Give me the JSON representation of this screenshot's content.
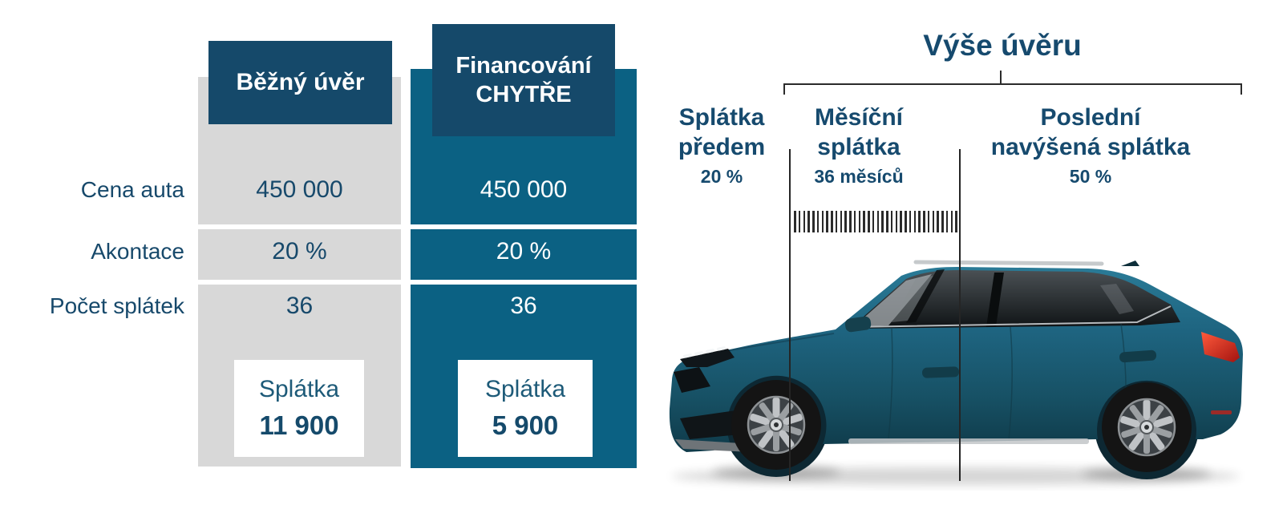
{
  "table": {
    "row_labels": [
      "Cena auta",
      "Akontace",
      "Počet splátek"
    ],
    "columns": [
      {
        "id": "standard-loan",
        "header_lines": [
          "Běžný úvěr"
        ],
        "values": [
          "450 000",
          "20 %",
          "36"
        ],
        "payment_label": "Splátka",
        "payment_value": "11 900"
      },
      {
        "id": "smart-financing",
        "header_lines": [
          "Financování",
          "CHYTŘE"
        ],
        "values": [
          "450 000",
          "20 %",
          "36"
        ],
        "payment_label": "Splátka",
        "payment_value": "5 900"
      }
    ]
  },
  "diagram": {
    "title": "Výše úvěru",
    "segments": [
      {
        "lines": [
          "Splátka",
          "předem"
        ],
        "sub": "20 %"
      },
      {
        "lines": [
          "Měsíční",
          "splátka"
        ],
        "sub": "36 měsíců"
      },
      {
        "lines": [
          "Poslední",
          "navýšená splátka"
        ],
        "sub": "50 %"
      }
    ],
    "tick_count": 36
  },
  "colors": {
    "header_navy": "#15496a",
    "column_teal": "#0b6183",
    "column_gray": "#d8d8d8",
    "text_blue": "#17496b",
    "line_black": "#2b2b2b",
    "car_blue": "#1e617b",
    "taillight_red": "#c22a1e"
  }
}
